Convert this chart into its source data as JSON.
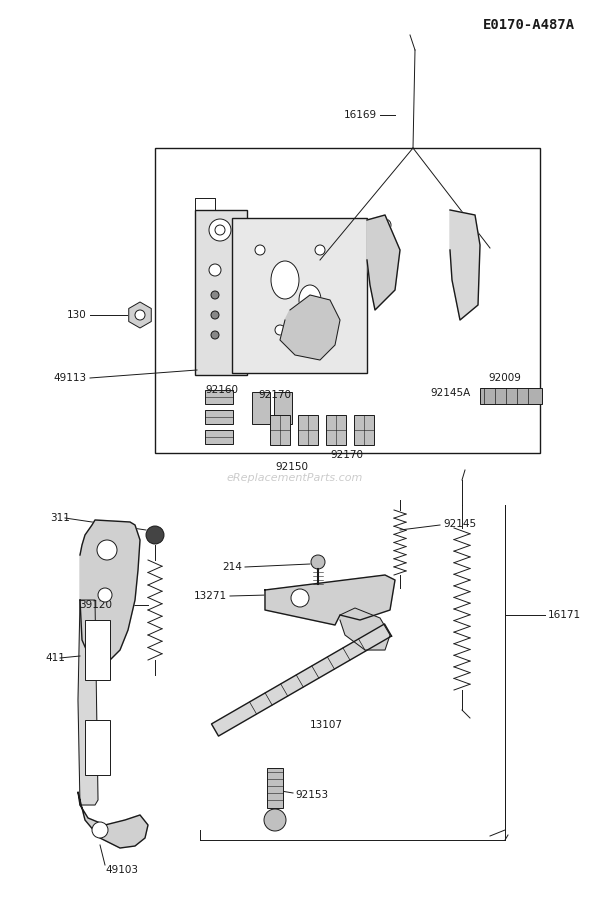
{
  "title": "E0170-A487A",
  "bg_color": "#ffffff",
  "lc": "#1a1a1a",
  "watermark": "eReplacementParts.com",
  "figsize": [
    5.9,
    9.1
  ],
  "dpi": 100
}
